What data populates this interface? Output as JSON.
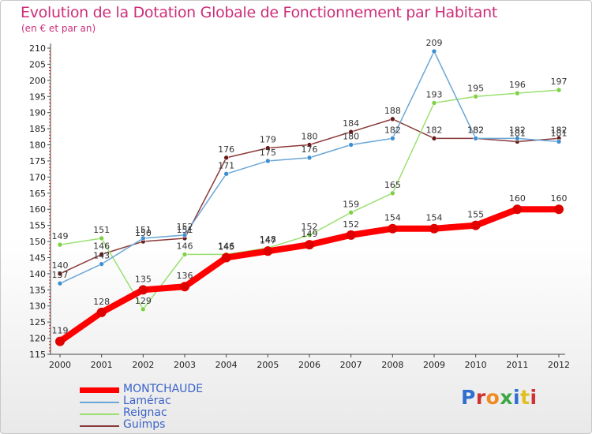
{
  "page": {
    "title": "Evolution de la Dotation Globale de Fonctionnement par Habitant",
    "subtitle": "(en € et par an)"
  },
  "logo": {
    "text": "Proxiti",
    "colors": [
      "#2f6fd0",
      "#d13030",
      "#f08a1e",
      "#3aa845",
      "#2f6fd0",
      "#e0c020",
      "#d13030"
    ]
  },
  "chart_data": {
    "type": "line",
    "title": "Evolution de la Dotation Globale de Fonctionnement par Habitant",
    "subtitle": "(en € et par an)",
    "xlabel": "",
    "ylabel": "",
    "x": [
      "2000",
      "2001",
      "2002",
      "2003",
      "2004",
      "2005",
      "2006",
      "2007",
      "2008",
      "2009",
      "2010",
      "2011",
      "2012"
    ],
    "ylim": [
      115,
      210
    ],
    "yticks": [
      115,
      120,
      125,
      130,
      135,
      140,
      145,
      150,
      155,
      160,
      165,
      170,
      175,
      180,
      185,
      190,
      195,
      200,
      205,
      210
    ],
    "grid": false,
    "legend_position": "bottom-left",
    "series": [
      {
        "name": "MONTCHAUDE",
        "color": "#ff0000",
        "marker": "#e00000",
        "values": [
          119,
          128,
          135,
          136,
          145,
          147,
          149,
          152,
          154,
          154,
          155,
          160,
          160
        ]
      },
      {
        "name": "Lamérac",
        "color": "#6aa6d6",
        "marker": "#3f8fd0",
        "values": [
          137,
          143,
          151,
          152,
          171,
          175,
          176,
          180,
          182,
          209,
          182,
          182,
          181
        ]
      },
      {
        "name": "Reignac",
        "color": "#9be070",
        "marker": "#7fd045",
        "values": [
          149,
          151,
          129,
          146,
          146,
          148,
          152,
          159,
          165,
          193,
          195,
          196,
          197
        ]
      },
      {
        "name": "Guimps",
        "color": "#8b3a3a",
        "marker": "#6a1a1a",
        "values": [
          140,
          146,
          150,
          151,
          176,
          179,
          180,
          184,
          188,
          182,
          182,
          181,
          182
        ]
      }
    ]
  }
}
